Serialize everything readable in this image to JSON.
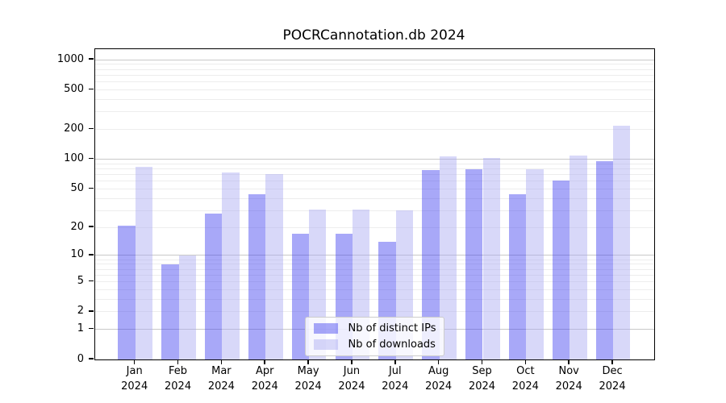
{
  "title": "POCRCannotation.db 2024",
  "chart_data": {
    "type": "bar",
    "title": "POCRCannotation.db 2024",
    "categories": [
      "Jan 2024",
      "Feb 2024",
      "Mar 2024",
      "Apr 2024",
      "May 2024",
      "Jun 2024",
      "Jul 2024",
      "Aug 2024",
      "Sep 2024",
      "Oct 2024",
      "Nov 2024",
      "Dec 2024"
    ],
    "series": [
      {
        "name": "Nb of distinct IPs",
        "color": "rgba(62,62,239,0.45)",
        "legend_color": "#a8a8f8",
        "values": [
          21,
          8,
          28,
          44,
          17,
          17,
          14,
          78,
          80,
          44,
          61,
          96
        ]
      },
      {
        "name": "Nb of downloads",
        "color": "rgba(168,168,242,0.45)",
        "legend_color": "#d8d8f9",
        "values": [
          84,
          10,
          74,
          71,
          31,
          31,
          30,
          107,
          103,
          80,
          110,
          218
        ]
      }
    ],
    "xlabel": "",
    "ylabel": "",
    "yscale": "symlog-log1p",
    "ylim": [
      0,
      1280
    ],
    "yticks": [
      0,
      1,
      2,
      5,
      10,
      20,
      50,
      100,
      200,
      500,
      1000
    ],
    "grid": {
      "on": true,
      "major": [
        1,
        10,
        100,
        1000
      ],
      "minor": [
        2,
        3,
        4,
        5,
        6,
        7,
        8,
        9,
        20,
        30,
        40,
        50,
        60,
        70,
        80,
        90,
        200,
        300,
        400,
        500,
        600,
        700,
        800,
        900
      ]
    },
    "legend_position": "lower center"
  },
  "colors": {
    "bar_ips": "#a8a8f8",
    "bar_downloads": "#d8d8f9",
    "grid_major": "#c9c9c9",
    "grid_minor": "#ededed",
    "axis": "#000000",
    "background": "#ffffff"
  }
}
